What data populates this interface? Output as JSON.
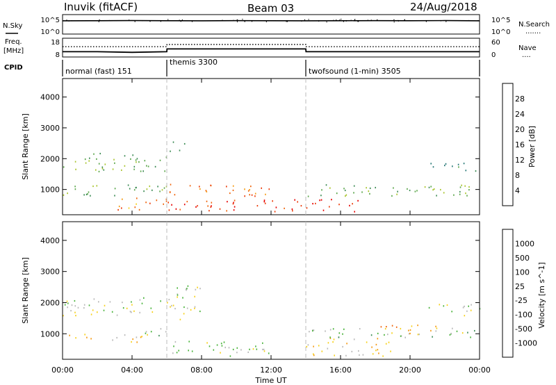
{
  "header": {
    "station": "Inuvik (fitACF)",
    "beam": "Beam 03",
    "date": "24/Aug/2018"
  },
  "nsky_panel": {
    "label": "N.Sky",
    "left_ticks": [
      "10^5",
      "10^0"
    ],
    "right_ticks": [
      "10^5",
      "10^0"
    ],
    "right_label": "N.Search",
    "right_dots": "......."
  },
  "freq_panel": {
    "label_line1": "Freq.",
    "label_line2": "[MHz]",
    "left_ticks": [
      "18",
      "8"
    ],
    "right_ticks": [
      "60",
      "0"
    ],
    "right_label": "Nave",
    "right_dots": "...."
  },
  "cpid_panel": {
    "label": "CPID",
    "modes": [
      {
        "name": "normal (fast) 151",
        "start_hour": 0,
        "end_hour": 6
      },
      {
        "name": "themis 3300",
        "start_hour": 6,
        "end_hour": 14
      },
      {
        "name": "twofsound (1-min) 3505",
        "start_hour": 14,
        "end_hour": 24
      }
    ]
  },
  "power_panel": {
    "ylabel": "Slant Range [km]",
    "yticks": [
      "1000",
      "2000",
      "3000",
      "4000"
    ],
    "colorbar_label": "Power [dB]",
    "colorbar_ticks": [
      "4",
      "8",
      "12",
      "16",
      "20",
      "24",
      "28"
    ],
    "colorbar_colors": [
      "#0019ff",
      "#1a45b8",
      "#2a7a78",
      "#3d8c55",
      "#5aa64a",
      "#a9c42e",
      "#f7d11a",
      "#f59a12",
      "#f0650c",
      "#ec3a07",
      "#e60000"
    ]
  },
  "velocity_panel": {
    "ylabel": "Slant Range [km]",
    "yticks": [
      "1000",
      "2000",
      "3000",
      "4000"
    ],
    "colorbar_label": "Velocity [m s^-1]",
    "colorbar_ticks": [
      "1000",
      "500",
      "100",
      "25",
      "-25",
      "-100",
      "-500",
      "-1000"
    ],
    "colorbar_colors": [
      "#1c3fb0",
      "#2a7a78",
      "#3d8c55",
      "#49b33a",
      "#b9b9b9",
      "#f7d11a",
      "#f59a12",
      "#f0650c",
      "#e60000"
    ]
  },
  "xaxis": {
    "label": "Time UT",
    "ticks": [
      "00:00",
      "04:00",
      "08:00",
      "12:00",
      "16:00",
      "20:00",
      "00:00"
    ]
  },
  "chart_data": [
    {
      "type": "line",
      "title": "N.Sky",
      "x_unit": "hour UT",
      "x": [
        0,
        2,
        4,
        6,
        8,
        10,
        12,
        14,
        16,
        18,
        20,
        22,
        24
      ],
      "series": [
        {
          "name": "N.Sky",
          "values": [
            3000,
            3200,
            3400,
            3100,
            3000,
            3300,
            3100,
            3000,
            3200,
            3300,
            3100,
            3500,
            3000
          ]
        }
      ],
      "ylim": [
        1,
        100000
      ],
      "yscale": "log"
    },
    {
      "type": "line",
      "title": "Freq.",
      "x_unit": "hour UT",
      "x": [
        0,
        2,
        4,
        6,
        6.01,
        10,
        14,
        14.01,
        18,
        24
      ],
      "series": [
        {
          "name": "Freq. [MHz]",
          "values": [
            10.8,
            10.8,
            10.5,
            10.8,
            12.3,
            12.3,
            12.3,
            10.8,
            10.8,
            10.8
          ]
        },
        {
          "name": "Nave",
          "values": [
            33,
            33,
            33,
            33,
            40,
            40,
            40,
            33,
            33,
            33
          ]
        }
      ],
      "ylim": [
        8,
        18
      ]
    },
    {
      "type": "heatmap",
      "title": "Power [dB]",
      "x_unit": "hour UT",
      "ylabel": "Slant Range [km]",
      "xlim": [
        0,
        24
      ],
      "ylim": [
        180,
        4600
      ],
      "clim": [
        0,
        30
      ],
      "features": [
        {
          "x": [
            0,
            6
          ],
          "y": [
            1600,
            2200
          ],
          "value": 12
        },
        {
          "x": [
            0,
            6
          ],
          "y": [
            800,
            1200
          ],
          "value": 12
        },
        {
          "x": [
            3,
            6
          ],
          "y": [
            350,
            800
          ],
          "value": 22
        },
        {
          "x": [
            6,
            14
          ],
          "y": [
            300,
            700
          ],
          "value": 27
        },
        {
          "x": [
            6,
            12
          ],
          "y": [
            800,
            1200
          ],
          "value": 24
        },
        {
          "x": [
            6,
            7
          ],
          "y": [
            2200,
            2600
          ],
          "value": 12
        },
        {
          "x": [
            14,
            17
          ],
          "y": [
            300,
            700
          ],
          "value": 27
        },
        {
          "x": [
            14,
            24
          ],
          "y": [
            800,
            1200
          ],
          "value": 12
        },
        {
          "x": [
            21,
            24
          ],
          "y": [
            1600,
            1900
          ],
          "value": 10
        }
      ]
    },
    {
      "type": "heatmap",
      "title": "Velocity [m s^-1]",
      "x_unit": "hour UT",
      "ylabel": "Slant Range [km]",
      "xlim": [
        0,
        24
      ],
      "ylim": [
        180,
        4600
      ],
      "clim": [
        -1000,
        1000
      ],
      "features": [
        {
          "x": [
            0,
            6
          ],
          "y": [
            1600,
            2200
          ],
          "value": 0
        },
        {
          "x": [
            0,
            5
          ],
          "y": [
            750,
            1000
          ],
          "value": -300
        },
        {
          "x": [
            4,
            6
          ],
          "y": [
            900,
            1200
          ],
          "value": 150
        },
        {
          "x": [
            6,
            12
          ],
          "y": [
            300,
            800
          ],
          "value": 120
        },
        {
          "x": [
            6,
            8
          ],
          "y": [
            1400,
            2600
          ],
          "value": 0
        },
        {
          "x": [
            14,
            19
          ],
          "y": [
            300,
            900
          ],
          "value": -200
        },
        {
          "x": [
            14,
            24
          ],
          "y": [
            900,
            1200
          ],
          "value": 150
        },
        {
          "x": [
            18,
            23
          ],
          "y": [
            1000,
            1300
          ],
          "value": -400
        },
        {
          "x": [
            21,
            24
          ],
          "y": [
            1600,
            2000
          ],
          "value": 0
        }
      ]
    }
  ]
}
